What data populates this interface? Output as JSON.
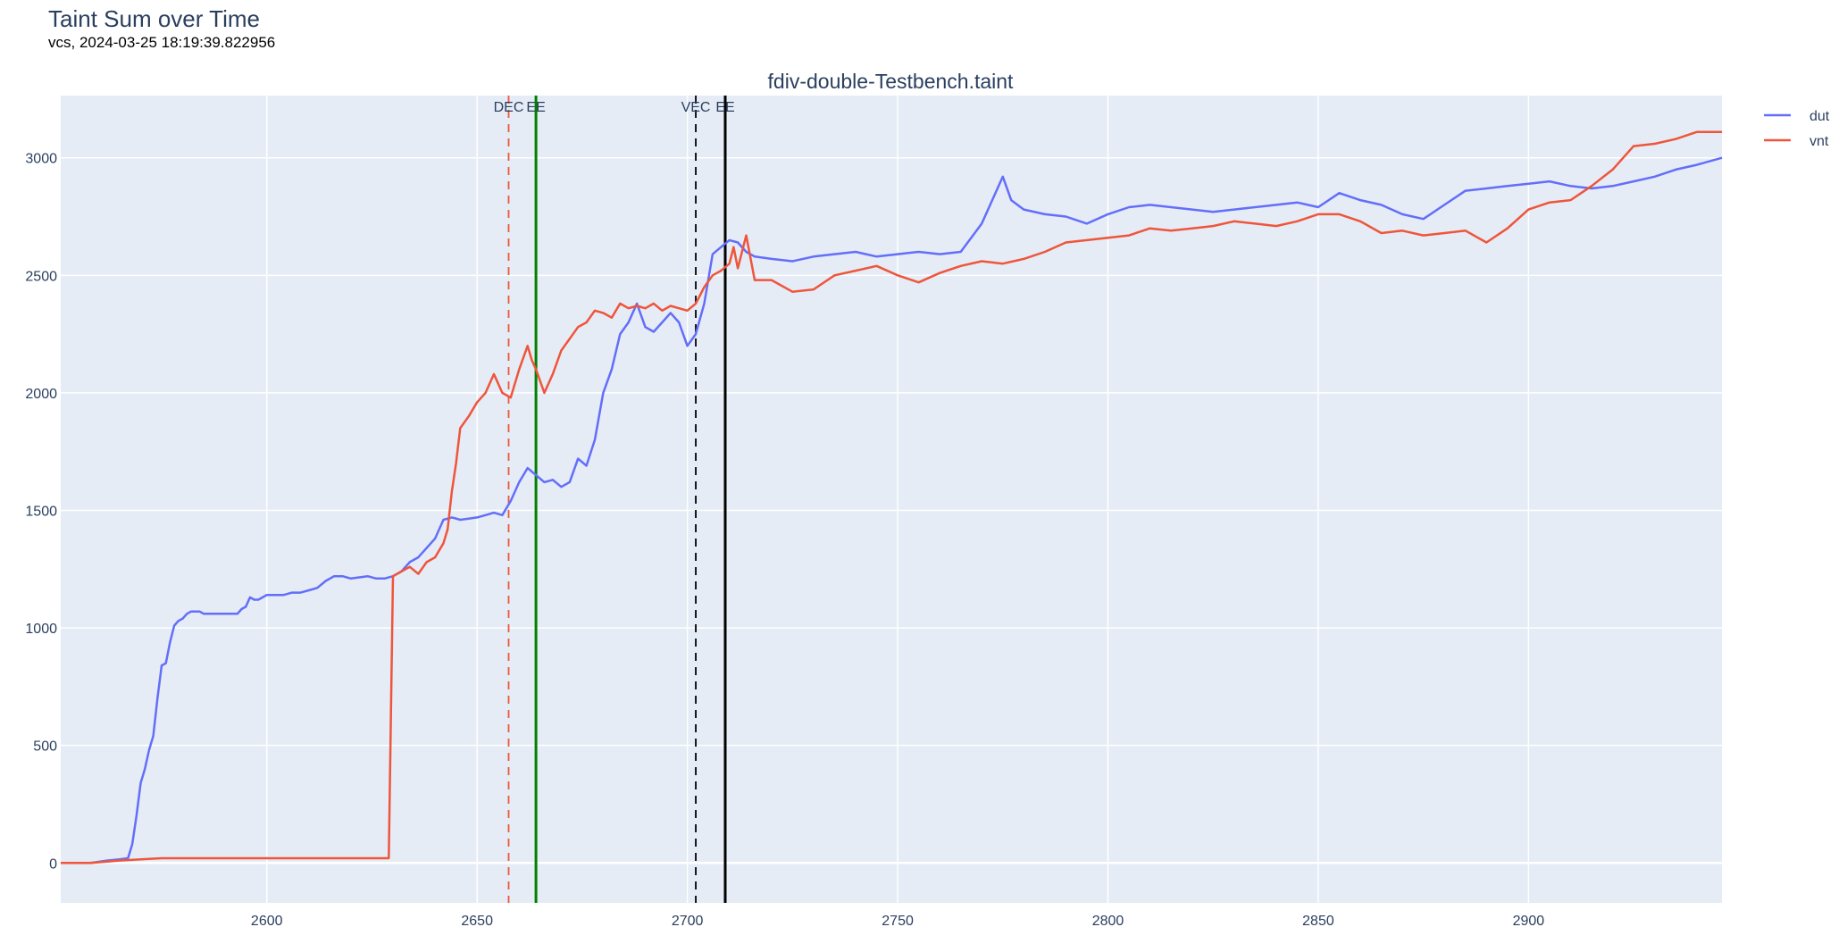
{
  "figure": {
    "title": "Taint Sum over Time",
    "subtitle": "vcs, 2024-03-25 18:19:39.822956"
  },
  "chart_data": {
    "type": "line",
    "title": "fdiv-double-Testbench.taint",
    "xlabel": "",
    "ylabel": "",
    "xlim": [
      2551,
      2946
    ],
    "ylim": [
      -170,
      3265
    ],
    "x_ticks": [
      2600,
      2650,
      2700,
      2750,
      2800,
      2850,
      2900
    ],
    "y_ticks": [
      0,
      500,
      1000,
      1500,
      2000,
      2500,
      3000
    ],
    "grid": true,
    "legend_position": "top-right",
    "series": [
      {
        "name": "dut",
        "color": "#636efa",
        "x": [
          2551,
          2558,
          2562,
          2565,
          2567,
          2568,
          2569,
          2570,
          2571,
          2572,
          2573,
          2574,
          2575,
          2576,
          2577,
          2578,
          2579,
          2580,
          2581,
          2582,
          2583,
          2584,
          2585,
          2586,
          2587,
          2588,
          2589,
          2590,
          2591,
          2592,
          2593,
          2594,
          2595,
          2596,
          2597,
          2598,
          2599,
          2600,
          2602,
          2604,
          2606,
          2608,
          2610,
          2612,
          2614,
          2616,
          2618,
          2620,
          2622,
          2624,
          2626,
          2628,
          2630,
          2632,
          2634,
          2636,
          2638,
          2640,
          2642,
          2644,
          2646,
          2648,
          2650,
          2652,
          2654,
          2656,
          2658,
          2660,
          2662,
          2664,
          2666,
          2668,
          2670,
          2672,
          2674,
          2676,
          2678,
          2680,
          2682,
          2684,
          2686,
          2688,
          2690,
          2692,
          2694,
          2696,
          2698,
          2700,
          2702,
          2704,
          2706,
          2708,
          2710,
          2712,
          2714,
          2716,
          2720,
          2725,
          2730,
          2735,
          2740,
          2745,
          2750,
          2755,
          2760,
          2765,
          2770,
          2775,
          2777,
          2780,
          2785,
          2790,
          2795,
          2800,
          2805,
          2810,
          2815,
          2820,
          2825,
          2830,
          2835,
          2840,
          2845,
          2850,
          2855,
          2860,
          2865,
          2870,
          2875,
          2880,
          2885,
          2890,
          2895,
          2900,
          2905,
          2910,
          2915,
          2920,
          2925,
          2930,
          2935,
          2940,
          2946
        ],
        "y": [
          0,
          0,
          10,
          15,
          20,
          80,
          200,
          340,
          400,
          480,
          540,
          700,
          840,
          850,
          940,
          1010,
          1030,
          1040,
          1060,
          1070,
          1070,
          1070,
          1060,
          1060,
          1060,
          1060,
          1060,
          1060,
          1060,
          1060,
          1060,
          1080,
          1090,
          1130,
          1120,
          1120,
          1130,
          1140,
          1140,
          1140,
          1150,
          1150,
          1160,
          1170,
          1200,
          1220,
          1220,
          1210,
          1215,
          1220,
          1210,
          1210,
          1220,
          1240,
          1280,
          1300,
          1340,
          1380,
          1460,
          1470,
          1460,
          1465,
          1470,
          1480,
          1490,
          1480,
          1540,
          1620,
          1680,
          1650,
          1620,
          1630,
          1600,
          1620,
          1720,
          1690,
          1800,
          2000,
          2100,
          2250,
          2300,
          2380,
          2280,
          2260,
          2300,
          2340,
          2300,
          2200,
          2250,
          2380,
          2590,
          2620,
          2650,
          2640,
          2600,
          2580,
          2570,
          2560,
          2580,
          2590,
          2600,
          2580,
          2590,
          2600,
          2590,
          2600,
          2720,
          2920,
          2820,
          2780,
          2760,
          2750,
          2720,
          2760,
          2790,
          2800,
          2790,
          2780,
          2770,
          2780,
          2790,
          2800,
          2810,
          2790,
          2850,
          2820,
          2800,
          2760,
          2740,
          2800,
          2860,
          2870,
          2880,
          2890,
          2900,
          2880,
          2870,
          2880,
          2900,
          2920,
          2950,
          2970,
          3000
        ]
      },
      {
        "name": "vnt",
        "color": "#ef553b",
        "x": [
          2551,
          2558,
          2565,
          2570,
          2575,
          2600,
          2620,
          2629,
          2630,
          2632,
          2634,
          2636,
          2638,
          2640,
          2641,
          2642,
          2643,
          2644,
          2645,
          2646,
          2648,
          2650,
          2652,
          2654,
          2656,
          2658,
          2660,
          2662,
          2663,
          2664,
          2666,
          2668,
          2670,
          2672,
          2674,
          2676,
          2678,
          2680,
          2682,
          2684,
          2686,
          2688,
          2690,
          2692,
          2694,
          2696,
          2698,
          2700,
          2702,
          2704,
          2706,
          2708,
          2710,
          2711,
          2712,
          2713,
          2714,
          2716,
          2720,
          2725,
          2730,
          2735,
          2740,
          2745,
          2750,
          2755,
          2760,
          2765,
          2770,
          2775,
          2780,
          2785,
          2790,
          2795,
          2800,
          2805,
          2810,
          2815,
          2820,
          2825,
          2830,
          2835,
          2840,
          2845,
          2850,
          2855,
          2860,
          2865,
          2870,
          2875,
          2880,
          2885,
          2890,
          2895,
          2900,
          2905,
          2910,
          2915,
          2920,
          2925,
          2930,
          2935,
          2940,
          2946
        ],
        "y": [
          0,
          0,
          10,
          15,
          20,
          20,
          20,
          20,
          1220,
          1240,
          1260,
          1230,
          1280,
          1300,
          1330,
          1360,
          1420,
          1580,
          1700,
          1850,
          1900,
          1960,
          2000,
          2080,
          2000,
          1980,
          2100,
          2200,
          2140,
          2100,
          2000,
          2080,
          2180,
          2230,
          2280,
          2300,
          2350,
          2340,
          2320,
          2380,
          2360,
          2370,
          2360,
          2380,
          2350,
          2370,
          2360,
          2350,
          2380,
          2450,
          2500,
          2520,
          2550,
          2620,
          2530,
          2600,
          2670,
          2480,
          2480,
          2430,
          2440,
          2500,
          2520,
          2540,
          2500,
          2470,
          2510,
          2540,
          2560,
          2550,
          2570,
          2600,
          2640,
          2650,
          2660,
          2670,
          2700,
          2690,
          2700,
          2710,
          2730,
          2720,
          2710,
          2730,
          2760,
          2760,
          2730,
          2680,
          2690,
          2670,
          2680,
          2690,
          2640,
          2700,
          2780,
          2810,
          2820,
          2880,
          2950,
          3050,
          3060,
          3080,
          3110,
          3110
        ]
      }
    ],
    "markers": [
      {
        "label": "DEC",
        "x": 2657.5,
        "style": "dashed",
        "color": "#ef553b"
      },
      {
        "label": "EE",
        "x": 2664,
        "style": "solid",
        "color": "#008000"
      },
      {
        "label": "VEC",
        "x": 2702,
        "style": "dashed",
        "color": "#000000"
      },
      {
        "label": "EE",
        "x": 2709,
        "style": "solid",
        "color": "#000000"
      }
    ]
  }
}
